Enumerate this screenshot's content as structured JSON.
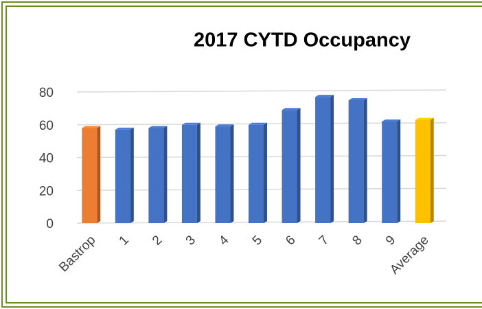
{
  "chart_data": {
    "type": "bar",
    "title": "2017 CYTD Occupancy",
    "categories": [
      "Bastrop",
      "1",
      "2",
      "3",
      "4",
      "5",
      "6",
      "7",
      "8",
      "9",
      "Average"
    ],
    "values": [
      58,
      57,
      58,
      60,
      59,
      60,
      69,
      77,
      75,
      62,
      63
    ],
    "colors": [
      "#ed7d31",
      "#4472c4",
      "#4472c4",
      "#4472c4",
      "#4472c4",
      "#4472c4",
      "#4472c4",
      "#4472c4",
      "#4472c4",
      "#4472c4",
      "#ffc000"
    ],
    "ylim": [
      0,
      80
    ],
    "yticks": [
      0,
      20,
      40,
      60,
      80
    ],
    "grid": true
  }
}
